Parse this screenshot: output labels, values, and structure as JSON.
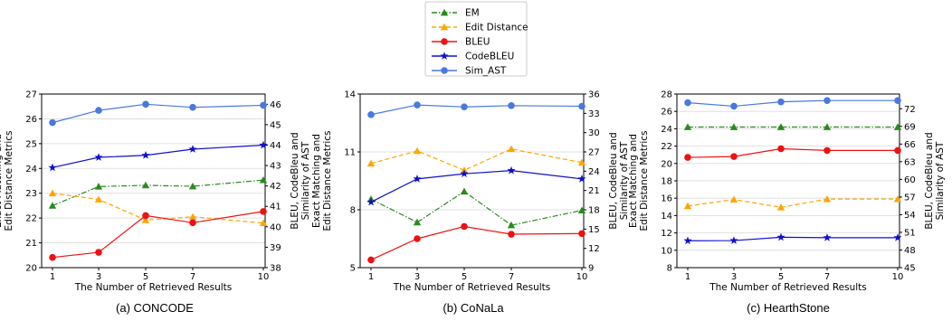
{
  "legend": [
    {
      "name": "EM",
      "color": "#2a8a1e",
      "dash": "6,2,1.5,2",
      "marker": "triangle"
    },
    {
      "name": "Edit Distance",
      "color": "#ffa500",
      "dash": "5,3",
      "marker": "triangle"
    },
    {
      "name": "BLEU",
      "color": "#ee1111",
      "dash": "",
      "marker": "circle"
    },
    {
      "name": "CodeBLEU",
      "color": "#1111cc",
      "dash": "",
      "marker": "star"
    },
    {
      "name": "Sim_AST",
      "color": "#4a78e0",
      "dash": "",
      "marker": "circle"
    }
  ],
  "chart_data": [
    {
      "type": "line",
      "caption": "(a) CONCODE",
      "xlabel": "The Number of Retrieved Results",
      "ylabel_left": [
        "Exact Matching and",
        "Edit Distance Metrics"
      ],
      "ylabel_right": [
        "BLEU, CodeBleu and",
        "Similarity of AST"
      ],
      "x": [
        1,
        3,
        5,
        7,
        10
      ],
      "xticks": [
        "1",
        "3",
        "5",
        "7",
        "10"
      ],
      "ylim_left": [
        20,
        27
      ],
      "yticks_left": [
        "20",
        "21",
        "22",
        "23",
        "24",
        "25",
        "26",
        "27"
      ],
      "ylim_right": [
        38,
        46.5
      ],
      "yticks_right": [
        "38",
        "39",
        "40",
        "41",
        "42",
        "43",
        "44",
        "45",
        "46"
      ],
      "series": [
        {
          "name": "EM",
          "axis": "left",
          "values": [
            22.5,
            23.27,
            23.32,
            23.28,
            23.53
          ]
        },
        {
          "name": "Edit Distance",
          "axis": "left",
          "values": [
            23.0,
            22.75,
            21.92,
            22.05,
            21.8
          ]
        },
        {
          "name": "BLEU",
          "axis": "right",
          "values": [
            38.5,
            38.75,
            40.55,
            40.2,
            40.75
          ]
        },
        {
          "name": "CodeBLEU",
          "axis": "right",
          "values": [
            42.9,
            43.4,
            43.5,
            43.8,
            44.0
          ]
        },
        {
          "name": "Sim_AST",
          "axis": "right",
          "values": [
            45.1,
            45.7,
            46.0,
            45.85,
            45.95
          ]
        }
      ]
    },
    {
      "type": "line",
      "caption": "(b) CoNaLa",
      "xlabel": "The Number of Retrieved Results",
      "ylabel_left": [
        "Exact Matching and",
        "Edit Distance Metrics"
      ],
      "ylabel_right": [
        "BLEU, CodeBleu and",
        "Similarity of AST"
      ],
      "x": [
        1,
        3,
        5,
        7,
        10
      ],
      "xticks": [
        "1",
        "3",
        "5",
        "7",
        "10"
      ],
      "ylim_left": [
        5,
        14
      ],
      "yticks_left": [
        "5",
        "8",
        "11",
        "14"
      ],
      "ylim_right": [
        9,
        36
      ],
      "yticks_right": [
        "9",
        "12",
        "15",
        "18",
        "21",
        "24",
        "27",
        "30",
        "33",
        "36"
      ],
      "series": [
        {
          "name": "EM",
          "axis": "left",
          "values": [
            8.55,
            7.35,
            8.95,
            7.2,
            7.97
          ]
        },
        {
          "name": "Edit Distance",
          "axis": "left",
          "values": [
            10.4,
            11.05,
            10.05,
            11.15,
            10.45
          ]
        },
        {
          "name": "BLEU",
          "axis": "right",
          "values": [
            10.2,
            13.5,
            15.4,
            14.2,
            14.3
          ]
        },
        {
          "name": "CodeBLEU",
          "axis": "right",
          "values": [
            19.2,
            22.8,
            23.6,
            24.1,
            22.8
          ]
        },
        {
          "name": "Sim_AST",
          "axis": "right",
          "values": [
            32.8,
            34.3,
            34.0,
            34.2,
            34.1
          ]
        }
      ]
    },
    {
      "type": "line",
      "caption": "(c) HearthStone",
      "xlabel": "The Number of Retrieved Results",
      "ylabel_left": [
        "Exact Matching and",
        "Edit Distance Metrics"
      ],
      "ylabel_right": [
        "BLEU, CodeBleu and",
        "Similarity of AST"
      ],
      "x": [
        1,
        3,
        5,
        7,
        10
      ],
      "xticks": [
        "1",
        "3",
        "5",
        "7",
        "10"
      ],
      "ylim_left": [
        8,
        28
      ],
      "yticks_left": [
        "8",
        "10",
        "12",
        "14",
        "16",
        "18",
        "20",
        "22",
        "24",
        "26",
        "28"
      ],
      "ylim_right": [
        45,
        74.5
      ],
      "yticks_right": [
        "45",
        "48",
        "51",
        "54",
        "57",
        "60",
        "63",
        "66",
        "69",
        "72"
      ],
      "series": [
        {
          "name": "EM",
          "axis": "left",
          "values": [
            24.2,
            24.2,
            24.2,
            24.2,
            24.2
          ]
        },
        {
          "name": "Edit Distance",
          "axis": "left",
          "values": [
            15.1,
            15.85,
            14.95,
            15.9,
            15.9
          ]
        },
        {
          "name": "BLEU",
          "axis": "left",
          "values": [
            20.7,
            20.8,
            21.7,
            21.5,
            21.5
          ]
        },
        {
          "name": "CodeBLEU",
          "axis": "left",
          "values": [
            11.1,
            11.12,
            11.5,
            11.45,
            11.45
          ]
        },
        {
          "name": "Sim_AST",
          "axis": "left",
          "values": [
            27.0,
            26.6,
            27.1,
            27.25,
            27.25
          ]
        }
      ]
    }
  ]
}
